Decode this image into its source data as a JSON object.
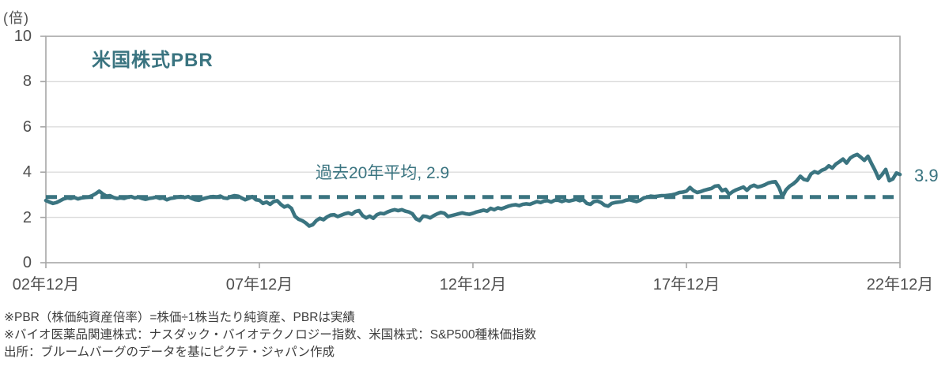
{
  "chart_data": {
    "type": "line",
    "title": "米国株式PBR",
    "unit_label": "(倍)",
    "grid": "horizontal",
    "legend_position": "none",
    "ylim": [
      0,
      10
    ],
    "y_ticks": [
      0,
      2,
      4,
      6,
      8,
      10
    ],
    "x_ticks": [
      {
        "label": "02年12月",
        "month_index": 0
      },
      {
        "label": "07年12月",
        "month_index": 60
      },
      {
        "label": "12年12月",
        "month_index": 120
      },
      {
        "label": "17年12月",
        "month_index": 180
      },
      {
        "label": "22年12月",
        "month_index": 240
      }
    ],
    "average_line": {
      "value": 2.9,
      "label": "過去20年平均, 2.9",
      "style": "dashed"
    },
    "end_label": "3.9",
    "end_value": 3.9,
    "colors": {
      "accent": "#3a7480",
      "axis": "#a6a6a6",
      "grid": "#dcdcdc",
      "tick_text": "#4f4f4f",
      "footnote_text": "#3d3d3d"
    },
    "series": [
      {
        "name": "米国株式PBR",
        "frequency": "monthly",
        "start": "2002-12",
        "end": "2022-12",
        "values": [
          2.75,
          2.68,
          2.62,
          2.66,
          2.74,
          2.82,
          2.86,
          2.84,
          2.88,
          2.82,
          2.86,
          2.88,
          2.9,
          2.96,
          3.05,
          3.16,
          3.04,
          2.94,
          2.96,
          2.88,
          2.84,
          2.86,
          2.84,
          2.9,
          2.92,
          2.86,
          2.9,
          2.84,
          2.8,
          2.84,
          2.86,
          2.9,
          2.84,
          2.86,
          2.78,
          2.84,
          2.86,
          2.9,
          2.92,
          2.88,
          2.92,
          2.84,
          2.78,
          2.76,
          2.82,
          2.86,
          2.9,
          2.92,
          2.9,
          2.94,
          2.86,
          2.84,
          2.92,
          2.96,
          2.94,
          2.86,
          2.78,
          2.84,
          2.92,
          2.78,
          2.76,
          2.62,
          2.68,
          2.58,
          2.7,
          2.74,
          2.58,
          2.46,
          2.52,
          2.4,
          2.05,
          1.92,
          1.86,
          1.76,
          1.62,
          1.68,
          1.86,
          1.96,
          1.9,
          2.02,
          2.1,
          2.12,
          2.04,
          2.1,
          2.16,
          2.2,
          2.14,
          2.26,
          2.3,
          2.08,
          1.98,
          2.06,
          1.96,
          2.12,
          2.18,
          2.16,
          2.24,
          2.3,
          2.34,
          2.3,
          2.34,
          2.28,
          2.24,
          2.16,
          1.94,
          1.86,
          2.06,
          2.04,
          1.98,
          2.08,
          2.16,
          2.22,
          2.18,
          2.04,
          2.08,
          2.12,
          2.16,
          2.2,
          2.16,
          2.14,
          2.18,
          2.24,
          2.28,
          2.32,
          2.28,
          2.4,
          2.34,
          2.42,
          2.38,
          2.44,
          2.5,
          2.54,
          2.56,
          2.52,
          2.58,
          2.6,
          2.58,
          2.64,
          2.7,
          2.66,
          2.72,
          2.74,
          2.68,
          2.76,
          2.76,
          2.7,
          2.76,
          2.72,
          2.76,
          2.8,
          2.74,
          2.78,
          2.62,
          2.58,
          2.7,
          2.72,
          2.66,
          2.54,
          2.5,
          2.62,
          2.66,
          2.68,
          2.7,
          2.76,
          2.78,
          2.74,
          2.7,
          2.76,
          2.86,
          2.9,
          2.94,
          2.92,
          2.94,
          2.96,
          2.96,
          2.98,
          3.0,
          3.04,
          3.1,
          3.12,
          3.16,
          3.32,
          3.18,
          3.1,
          3.14,
          3.2,
          3.24,
          3.28,
          3.38,
          3.4,
          3.18,
          3.24,
          3.02,
          3.14,
          3.22,
          3.28,
          3.34,
          3.2,
          3.36,
          3.42,
          3.34,
          3.38,
          3.44,
          3.52,
          3.56,
          3.58,
          3.32,
          2.92,
          3.22,
          3.38,
          3.48,
          3.62,
          3.82,
          3.68,
          3.64,
          3.92,
          4.02,
          3.96,
          4.08,
          4.14,
          4.28,
          4.18,
          4.36,
          4.46,
          4.58,
          4.4,
          4.62,
          4.72,
          4.78,
          4.66,
          4.52,
          4.7,
          4.38,
          4.08,
          3.72,
          3.9,
          4.12,
          3.62,
          3.7,
          3.96,
          3.9
        ]
      }
    ]
  },
  "footnotes": [
    "※PBR（株価純資産倍率）=株価÷1株当たり純資産、PBRは実績",
    "※バイオ医薬品関連株式：ナスダック・バイオテクノロジー指数、米国株式：S&P500種株価指数",
    "出所：ブルームバーグのデータを基にピクテ・ジャパン作成"
  ]
}
